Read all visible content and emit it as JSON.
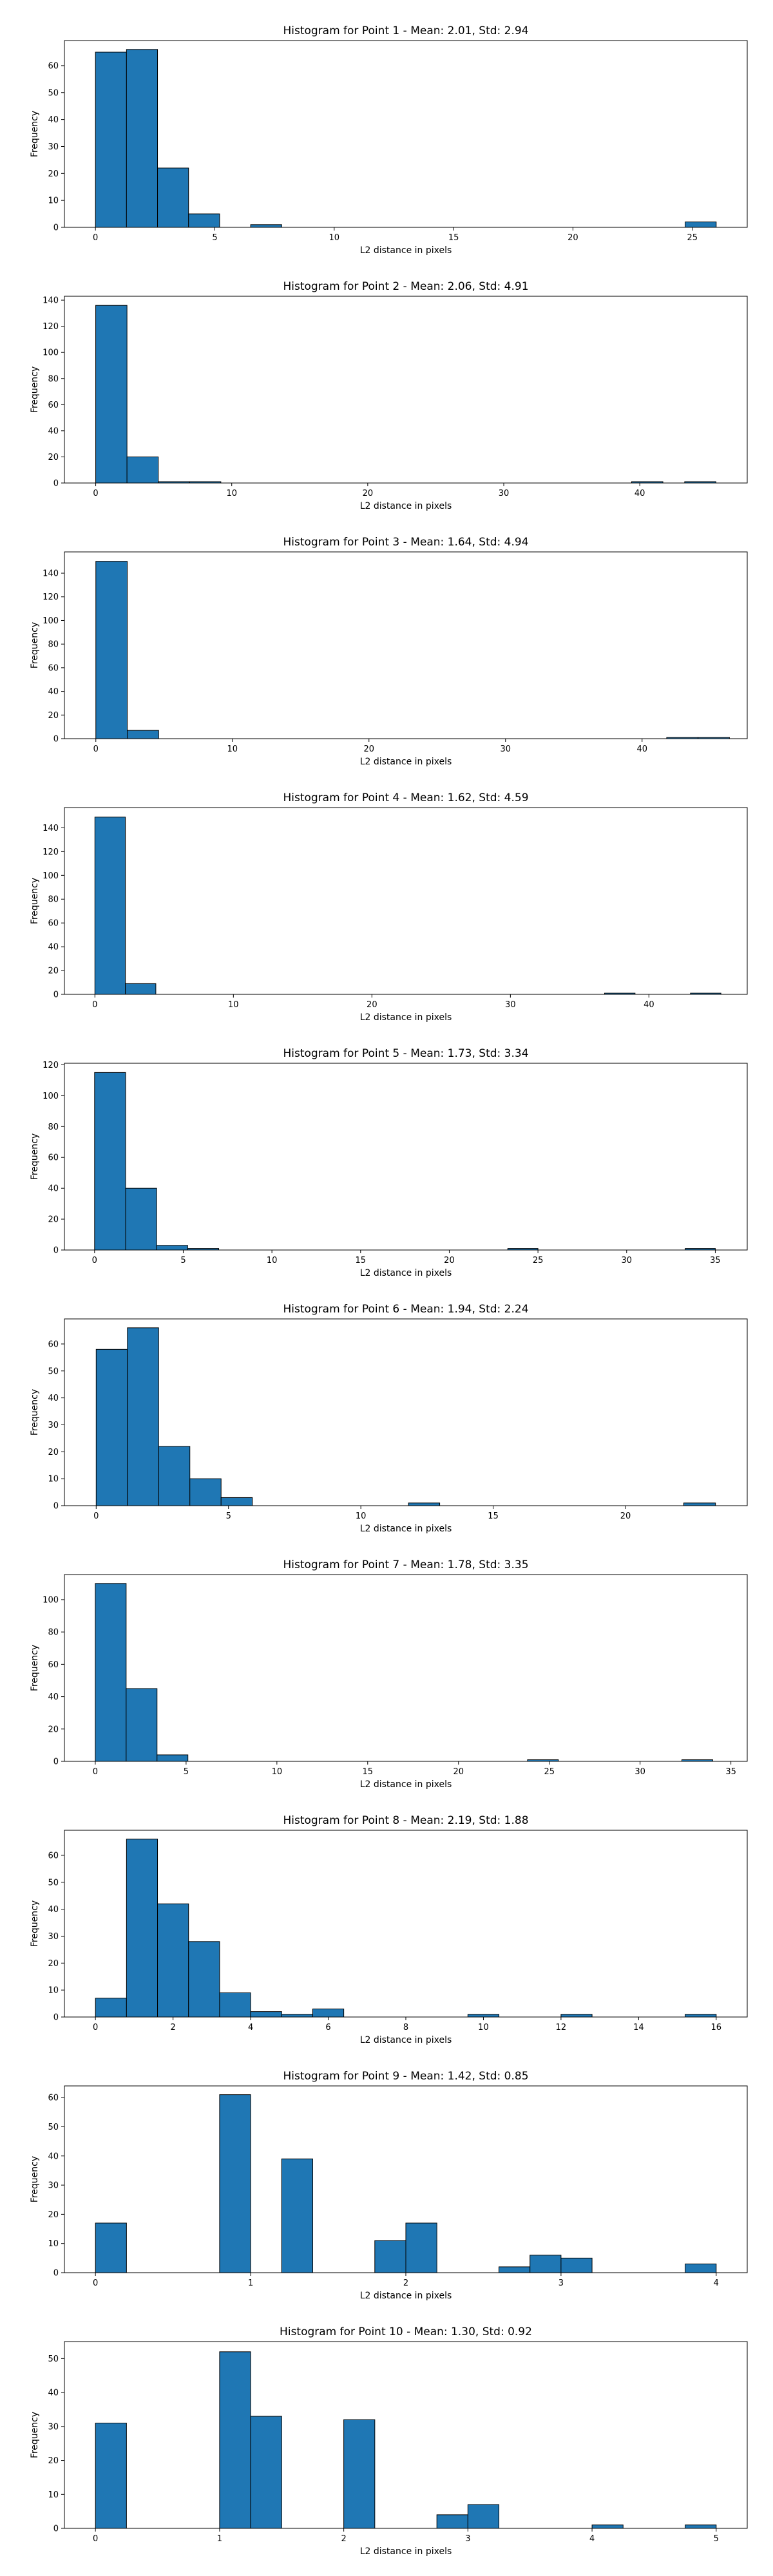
{
  "figure": {
    "bar_color": "#1f77b4",
    "edge_color": "#000000",
    "background": "#ffffff"
  },
  "chart_data": [
    {
      "type": "bar",
      "title": "Histogram for Point 1 - Mean: 2.01, Std: 2.94",
      "xlabel": "L2 distance in pixels",
      "ylabel": "Frequency",
      "xlim": [
        -1.3,
        27.3
      ],
      "ylim": [
        0,
        69.3
      ],
      "xticks": [
        0,
        5,
        10,
        15,
        20,
        25
      ],
      "yticks": [
        0,
        10,
        20,
        30,
        40,
        50,
        60
      ],
      "bins": [
        [
          0.0,
          1.3,
          65
        ],
        [
          1.3,
          2.6,
          66
        ],
        [
          2.6,
          3.9,
          22
        ],
        [
          3.9,
          5.2,
          5
        ],
        [
          6.5,
          7.8,
          1
        ],
        [
          24.7,
          26.0,
          2
        ]
      ]
    },
    {
      "type": "bar",
      "title": "Histogram for Point 2 - Mean: 2.06, Std: 4.91",
      "xlabel": "L2 distance in pixels",
      "ylabel": "Frequency",
      "xlim": [
        -2.3,
        47.9
      ],
      "ylim": [
        0,
        143
      ],
      "xticks": [
        0,
        10,
        20,
        30,
        40
      ],
      "yticks": [
        0,
        20,
        40,
        60,
        80,
        100,
        120,
        140
      ],
      "bins": [
        [
          0.0,
          2.3,
          136
        ],
        [
          2.3,
          4.6,
          20
        ],
        [
          4.6,
          6.9,
          1
        ],
        [
          6.9,
          9.2,
          1
        ],
        [
          39.4,
          41.7,
          1
        ],
        [
          43.3,
          45.6,
          1
        ]
      ]
    },
    {
      "type": "bar",
      "title": "Histogram for Point 3 - Mean: 1.64, Std: 4.94",
      "xlabel": "L2 distance in pixels",
      "ylabel": "Frequency",
      "xlim": [
        -2.3,
        47.7
      ],
      "ylim": [
        0,
        158
      ],
      "xticks": [
        0,
        10,
        20,
        30,
        40
      ],
      "yticks": [
        0,
        20,
        40,
        60,
        80,
        100,
        120,
        140
      ],
      "bins": [
        [
          0.0,
          2.3,
          150
        ],
        [
          2.3,
          4.6,
          7
        ],
        [
          41.8,
          44.1,
          1
        ],
        [
          44.1,
          46.4,
          1
        ]
      ]
    },
    {
      "type": "bar",
      "title": "Histogram for Point 4 - Mean: 1.62, Std: 4.59",
      "xlabel": "L2 distance in pixels",
      "ylabel": "Frequency",
      "xlim": [
        -2.2,
        47.1
      ],
      "ylim": [
        0,
        157
      ],
      "xticks": [
        0,
        10,
        20,
        30,
        40
      ],
      "yticks": [
        0,
        20,
        40,
        60,
        80,
        100,
        120,
        140
      ],
      "bins": [
        [
          0.0,
          2.2,
          149
        ],
        [
          2.2,
          4.4,
          9
        ],
        [
          36.8,
          39.0,
          1
        ],
        [
          43.0,
          45.2,
          1
        ]
      ]
    },
    {
      "type": "bar",
      "title": "Histogram for Point 5 - Mean: 1.73, Std: 3.34",
      "xlabel": "L2 distance in pixels",
      "ylabel": "Frequency",
      "xlim": [
        -1.7,
        36.8
      ],
      "ylim": [
        0,
        121
      ],
      "xticks": [
        0,
        5,
        10,
        15,
        20,
        25,
        30,
        35
      ],
      "yticks": [
        0,
        20,
        40,
        60,
        80,
        100,
        120
      ],
      "bins": [
        [
          0.0,
          1.75,
          115
        ],
        [
          1.75,
          3.5,
          40
        ],
        [
          3.5,
          5.25,
          3
        ],
        [
          5.25,
          7.0,
          1
        ],
        [
          23.3,
          25.0,
          1
        ],
        [
          33.3,
          35.0,
          1
        ]
      ]
    },
    {
      "type": "bar",
      "title": "Histogram for Point 6 - Mean: 1.94, Std: 2.24",
      "xlabel": "L2 distance in pixels",
      "ylabel": "Frequency",
      "xlim": [
        -1.2,
        24.6
      ],
      "ylim": [
        0,
        69.3
      ],
      "xticks": [
        0,
        5,
        10,
        15,
        20
      ],
      "yticks": [
        0,
        10,
        20,
        30,
        40,
        50,
        60
      ],
      "bins": [
        [
          0.0,
          1.18,
          58
        ],
        [
          1.18,
          2.36,
          66
        ],
        [
          2.36,
          3.54,
          22
        ],
        [
          3.54,
          4.72,
          10
        ],
        [
          4.72,
          5.9,
          3
        ],
        [
          11.8,
          12.98,
          1
        ],
        [
          22.2,
          23.4,
          1
        ]
      ]
    },
    {
      "type": "bar",
      "title": "Histogram for Point 7 - Mean: 1.78, Std: 3.35",
      "xlabel": "L2 distance in pixels",
      "ylabel": "Frequency",
      "xlim": [
        -1.7,
        35.9
      ],
      "ylim": [
        0,
        115.5
      ],
      "xticks": [
        0,
        5,
        10,
        15,
        20,
        25,
        30,
        35
      ],
      "yticks": [
        0,
        20,
        40,
        60,
        80,
        100
      ],
      "bins": [
        [
          0.0,
          1.7,
          110
        ],
        [
          1.7,
          3.4,
          45
        ],
        [
          3.4,
          5.1,
          4
        ],
        [
          23.8,
          25.5,
          1
        ],
        [
          32.3,
          34.0,
          1
        ]
      ]
    },
    {
      "type": "bar",
      "title": "Histogram for Point 8 - Mean: 2.19, Std: 1.88",
      "xlabel": "L2 distance in pixels",
      "ylabel": "Frequency",
      "xlim": [
        -0.8,
        16.8
      ],
      "ylim": [
        0,
        69.3
      ],
      "xticks": [
        0,
        2,
        4,
        6,
        8,
        10,
        12,
        14,
        16
      ],
      "yticks": [
        0,
        10,
        20,
        30,
        40,
        50,
        60
      ],
      "bins": [
        [
          0.0,
          0.8,
          7
        ],
        [
          0.8,
          1.6,
          66
        ],
        [
          1.6,
          2.4,
          42
        ],
        [
          2.4,
          3.2,
          28
        ],
        [
          3.2,
          4.0,
          9
        ],
        [
          4.0,
          4.8,
          2
        ],
        [
          4.8,
          5.6,
          1
        ],
        [
          5.6,
          6.4,
          3
        ],
        [
          9.6,
          10.4,
          1
        ],
        [
          12.0,
          12.8,
          1
        ],
        [
          15.2,
          16.0,
          1
        ]
      ]
    },
    {
      "type": "bar",
      "title": "Histogram for Point 9 - Mean: 1.42, Std: 0.85",
      "xlabel": "L2 distance in pixels",
      "ylabel": "Frequency",
      "xlim": [
        -0.2,
        4.2
      ],
      "ylim": [
        0,
        64
      ],
      "xticks": [
        0,
        1,
        2,
        3,
        4
      ],
      "yticks": [
        0,
        10,
        20,
        30,
        40,
        50,
        60
      ],
      "bins": [
        [
          0.0,
          0.2,
          17
        ],
        [
          0.8,
          1.0,
          61
        ],
        [
          1.2,
          1.4,
          39
        ],
        [
          1.8,
          2.0,
          11
        ],
        [
          2.0,
          2.2,
          17
        ],
        [
          2.6,
          2.8,
          2
        ],
        [
          2.8,
          3.0,
          6
        ],
        [
          3.0,
          3.2,
          5
        ],
        [
          3.8,
          4.0,
          3
        ]
      ]
    },
    {
      "type": "bar",
      "title": "Histogram for Point 10 - Mean: 1.30, Std: 0.92",
      "xlabel": "L2 distance in pixels",
      "ylabel": "Frequency",
      "xlim": [
        -0.25,
        5.25
      ],
      "ylim": [
        0,
        55
      ],
      "xticks": [
        0,
        1,
        2,
        3,
        4,
        5
      ],
      "yticks": [
        0,
        10,
        20,
        30,
        40,
        50
      ],
      "bins": [
        [
          0.0,
          0.25,
          31
        ],
        [
          1.0,
          1.25,
          52
        ],
        [
          1.25,
          1.5,
          33
        ],
        [
          2.0,
          2.25,
          32
        ],
        [
          2.75,
          3.0,
          4
        ],
        [
          3.0,
          3.25,
          7
        ],
        [
          4.0,
          4.25,
          1
        ],
        [
          4.75,
          5.0,
          1
        ]
      ]
    }
  ]
}
